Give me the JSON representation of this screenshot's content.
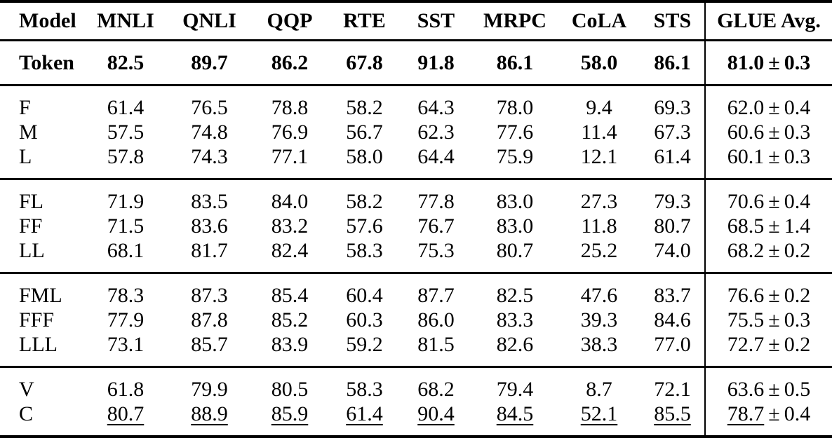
{
  "colors": {
    "background": "#ffffff",
    "text": "#000000",
    "rule": "#000000"
  },
  "table": {
    "columns": [
      "Model",
      "MNLI",
      "QNLI",
      "QQP",
      "RTE",
      "SST",
      "MRPC",
      "CoLA",
      "STS",
      "GLUE Avg."
    ],
    "pm_sign": "±",
    "groups": [
      {
        "rows": [
          {
            "model": "Token",
            "style": "bold",
            "scores": [
              "82.5",
              "89.7",
              "86.2",
              "67.8",
              "91.8",
              "86.1",
              "58.0",
              "86.1"
            ],
            "glue_avg": "81.0",
            "glue_std": "0.3"
          }
        ]
      },
      {
        "rows": [
          {
            "model": "F",
            "style": "normal",
            "scores": [
              "61.4",
              "76.5",
              "78.8",
              "58.2",
              "64.3",
              "78.0",
              "9.4",
              "69.3"
            ],
            "glue_avg": "62.0",
            "glue_std": "0.4"
          },
          {
            "model": "M",
            "style": "normal",
            "scores": [
              "57.5",
              "74.8",
              "76.9",
              "56.7",
              "62.3",
              "77.6",
              "11.4",
              "67.3"
            ],
            "glue_avg": "60.6",
            "glue_std": "0.3"
          },
          {
            "model": "L",
            "style": "normal",
            "scores": [
              "57.8",
              "74.3",
              "77.1",
              "58.0",
              "64.4",
              "75.9",
              "12.1",
              "61.4"
            ],
            "glue_avg": "60.1",
            "glue_std": "0.3"
          }
        ]
      },
      {
        "rows": [
          {
            "model": "FL",
            "style": "normal",
            "scores": [
              "71.9",
              "83.5",
              "84.0",
              "58.2",
              "77.8",
              "83.0",
              "27.3",
              "79.3"
            ],
            "glue_avg": "70.6",
            "glue_std": "0.4"
          },
          {
            "model": "FF",
            "style": "normal",
            "scores": [
              "71.5",
              "83.6",
              "83.2",
              "57.6",
              "76.7",
              "83.0",
              "11.8",
              "80.7"
            ],
            "glue_avg": "68.5",
            "glue_std": "1.4"
          },
          {
            "model": "LL",
            "style": "normal",
            "scores": [
              "68.1",
              "81.7",
              "82.4",
              "58.3",
              "75.3",
              "80.7",
              "25.2",
              "74.0"
            ],
            "glue_avg": "68.2",
            "glue_std": "0.2"
          }
        ]
      },
      {
        "rows": [
          {
            "model": "FML",
            "style": "normal",
            "scores": [
              "78.3",
              "87.3",
              "85.4",
              "60.4",
              "87.7",
              "82.5",
              "47.6",
              "83.7"
            ],
            "glue_avg": "76.6",
            "glue_std": "0.2"
          },
          {
            "model": "FFF",
            "style": "normal",
            "scores": [
              "77.9",
              "87.8",
              "85.2",
              "60.3",
              "86.0",
              "83.3",
              "39.3",
              "84.6"
            ],
            "glue_avg": "75.5",
            "glue_std": "0.3"
          },
          {
            "model": "LLL",
            "style": "normal",
            "scores": [
              "73.1",
              "85.7",
              "83.9",
              "59.2",
              "81.5",
              "82.6",
              "38.3",
              "77.0"
            ],
            "glue_avg": "72.7",
            "glue_std": "0.2"
          }
        ]
      },
      {
        "rows": [
          {
            "model": "V",
            "style": "normal",
            "scores": [
              "61.8",
              "79.9",
              "80.5",
              "58.3",
              "68.2",
              "79.4",
              "8.7",
              "72.1"
            ],
            "glue_avg": "63.6",
            "glue_std": "0.5"
          },
          {
            "model": "C",
            "style": "underline",
            "scores": [
              "80.7",
              "88.9",
              "85.9",
              "61.4",
              "90.4",
              "84.5",
              "52.1",
              "85.5"
            ],
            "glue_avg": "78.7",
            "glue_std": "0.4"
          }
        ]
      }
    ]
  }
}
